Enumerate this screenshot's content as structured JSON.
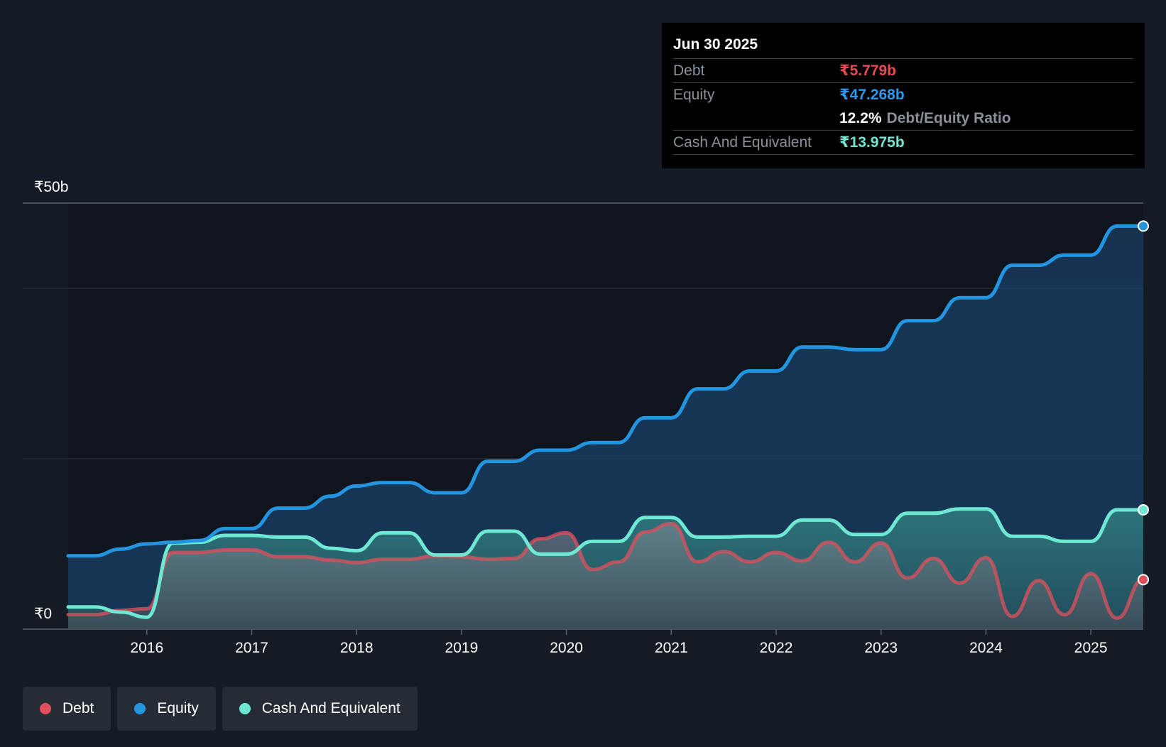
{
  "chart_data": {
    "type": "area",
    "currency_prefix": "₹",
    "y_axis_labels": {
      "top": "₹50b",
      "bottom": "₹0"
    },
    "ylim": [
      0,
      50
    ],
    "xlim": [
      2015.25,
      2025.5
    ],
    "x_ticks": [
      2016,
      2017,
      2018,
      2019,
      2020,
      2021,
      2022,
      2023,
      2024,
      2025
    ],
    "x_tick_labels": [
      "2016",
      "2017",
      "2018",
      "2019",
      "2020",
      "2021",
      "2022",
      "2023",
      "2024",
      "2025"
    ],
    "gridlines": [
      50,
      40,
      20,
      0
    ],
    "series": [
      {
        "name": "Equity",
        "color": "#2394e0",
        "points": [
          [
            2015.25,
            8.6
          ],
          [
            2015.5,
            8.6
          ],
          [
            2015.75,
            9.4
          ],
          [
            2016.0,
            10.0
          ],
          [
            2016.25,
            10.2
          ],
          [
            2016.5,
            10.4
          ],
          [
            2016.75,
            11.8
          ],
          [
            2017.0,
            11.8
          ],
          [
            2017.25,
            14.2
          ],
          [
            2017.5,
            14.2
          ],
          [
            2017.75,
            15.6
          ],
          [
            2018.0,
            16.8
          ],
          [
            2018.25,
            17.2
          ],
          [
            2018.5,
            17.2
          ],
          [
            2018.75,
            16.0
          ],
          [
            2019.0,
            16.0
          ],
          [
            2019.25,
            19.7
          ],
          [
            2019.5,
            19.7
          ],
          [
            2019.75,
            21.0
          ],
          [
            2020.0,
            21.0
          ],
          [
            2020.25,
            21.9
          ],
          [
            2020.5,
            21.9
          ],
          [
            2020.75,
            24.8
          ],
          [
            2021.0,
            24.8
          ],
          [
            2021.25,
            28.2
          ],
          [
            2021.5,
            28.2
          ],
          [
            2021.75,
            30.3
          ],
          [
            2022.0,
            30.3
          ],
          [
            2022.25,
            33.1
          ],
          [
            2022.5,
            33.1
          ],
          [
            2022.75,
            32.8
          ],
          [
            2023.0,
            32.8
          ],
          [
            2023.25,
            36.2
          ],
          [
            2023.5,
            36.2
          ],
          [
            2023.75,
            38.9
          ],
          [
            2024.0,
            38.9
          ],
          [
            2024.25,
            42.7
          ],
          [
            2024.5,
            42.7
          ],
          [
            2024.75,
            43.9
          ],
          [
            2025.0,
            43.9
          ],
          [
            2025.25,
            47.3
          ],
          [
            2025.5,
            47.3
          ]
        ]
      },
      {
        "name": "Cash And Equivalent",
        "color": "#6ee7d3",
        "points": [
          [
            2015.25,
            2.6
          ],
          [
            2015.5,
            2.6
          ],
          [
            2015.75,
            2.0
          ],
          [
            2016.0,
            1.4
          ],
          [
            2016.25,
            10.1
          ],
          [
            2016.5,
            10.2
          ],
          [
            2016.75,
            11.0
          ],
          [
            2017.0,
            11.0
          ],
          [
            2017.25,
            10.8
          ],
          [
            2017.5,
            10.8
          ],
          [
            2017.75,
            9.5
          ],
          [
            2018.0,
            9.2
          ],
          [
            2018.25,
            11.3
          ],
          [
            2018.5,
            11.3
          ],
          [
            2018.75,
            8.7
          ],
          [
            2019.0,
            8.7
          ],
          [
            2019.25,
            11.5
          ],
          [
            2019.5,
            11.5
          ],
          [
            2019.75,
            8.8
          ],
          [
            2020.0,
            8.8
          ],
          [
            2020.25,
            10.3
          ],
          [
            2020.5,
            10.3
          ],
          [
            2020.75,
            13.1
          ],
          [
            2021.0,
            13.1
          ],
          [
            2021.25,
            10.8
          ],
          [
            2021.5,
            10.8
          ],
          [
            2021.75,
            10.9
          ],
          [
            2022.0,
            10.9
          ],
          [
            2022.25,
            12.8
          ],
          [
            2022.5,
            12.8
          ],
          [
            2022.75,
            11.1
          ],
          [
            2023.0,
            11.1
          ],
          [
            2023.25,
            13.6
          ],
          [
            2023.5,
            13.6
          ],
          [
            2023.75,
            14.1
          ],
          [
            2024.0,
            14.1
          ],
          [
            2024.25,
            10.9
          ],
          [
            2024.5,
            10.9
          ],
          [
            2024.75,
            10.3
          ],
          [
            2025.0,
            10.3
          ],
          [
            2025.25,
            14.0
          ],
          [
            2025.5,
            14.0
          ]
        ]
      },
      {
        "name": "Debt",
        "color": "#e0505c",
        "points": [
          [
            2015.25,
            1.7
          ],
          [
            2015.5,
            1.7
          ],
          [
            2015.75,
            2.2
          ],
          [
            2016.0,
            2.4
          ],
          [
            2016.25,
            9.0
          ],
          [
            2016.5,
            9.0
          ],
          [
            2016.75,
            9.3
          ],
          [
            2017.0,
            9.3
          ],
          [
            2017.25,
            8.5
          ],
          [
            2017.5,
            8.5
          ],
          [
            2017.75,
            8.1
          ],
          [
            2018.0,
            7.8
          ],
          [
            2018.25,
            8.2
          ],
          [
            2018.5,
            8.2
          ],
          [
            2018.75,
            8.6
          ],
          [
            2019.0,
            8.5
          ],
          [
            2019.25,
            8.2
          ],
          [
            2019.5,
            8.3
          ],
          [
            2019.75,
            10.6
          ],
          [
            2020.0,
            11.3
          ],
          [
            2020.25,
            7.0
          ],
          [
            2020.5,
            7.9
          ],
          [
            2020.75,
            11.4
          ],
          [
            2021.0,
            12.4
          ],
          [
            2021.25,
            7.9
          ],
          [
            2021.5,
            9.1
          ],
          [
            2021.75,
            7.9
          ],
          [
            2022.0,
            9.0
          ],
          [
            2022.25,
            8.0
          ],
          [
            2022.5,
            10.2
          ],
          [
            2022.75,
            7.9
          ],
          [
            2023.0,
            10.1
          ],
          [
            2023.25,
            6.0
          ],
          [
            2023.5,
            8.3
          ],
          [
            2023.75,
            5.4
          ],
          [
            2024.0,
            8.4
          ],
          [
            2024.25,
            1.5
          ],
          [
            2024.5,
            5.7
          ],
          [
            2024.75,
            1.7
          ],
          [
            2025.0,
            6.5
          ],
          [
            2025.25,
            1.3
          ],
          [
            2025.5,
            5.8
          ]
        ]
      }
    ],
    "tooltip": {
      "date": "Jun 30 2025",
      "debt_label": "Debt",
      "debt_value": "₹5.779b",
      "equity_label": "Equity",
      "equity_value": "₹47.268b",
      "ratio_value": "12.2%",
      "ratio_label": "Debt/Equity Ratio",
      "cash_label": "Cash And Equivalent",
      "cash_value": "₹13.975b"
    },
    "legend": [
      {
        "label": "Debt",
        "color": "#e0505c"
      },
      {
        "label": "Equity",
        "color": "#2394e0"
      },
      {
        "label": "Cash And Equivalent",
        "color": "#6ee7d3"
      }
    ]
  }
}
